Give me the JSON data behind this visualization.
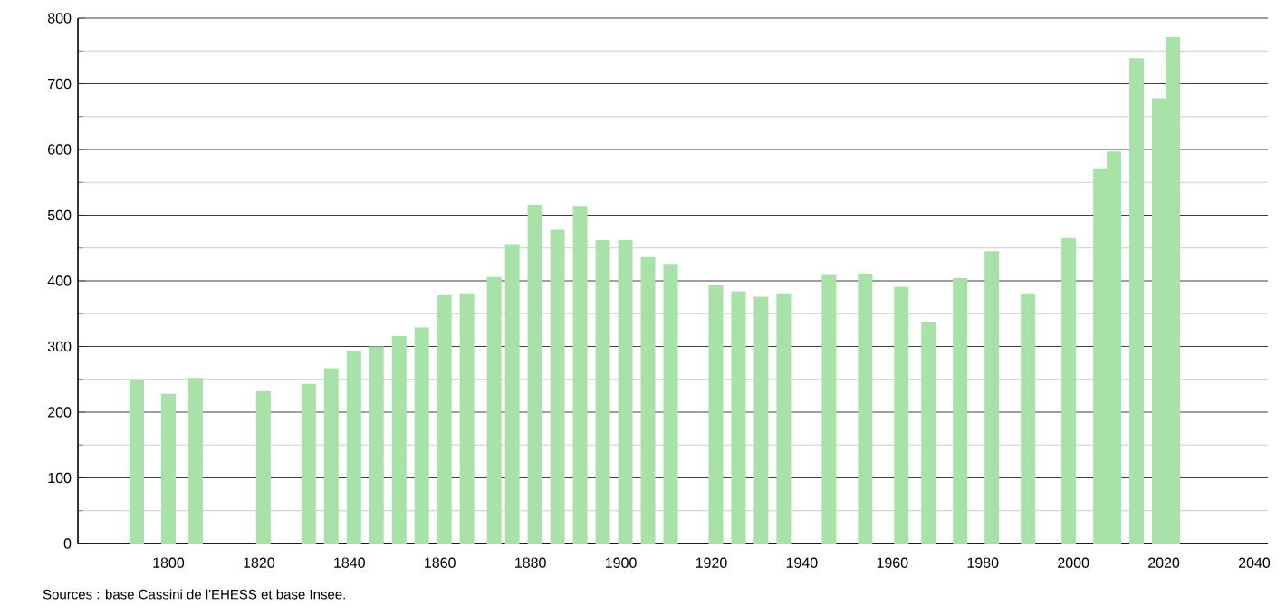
{
  "chart_data": {
    "type": "bar",
    "color": "#a8e2a8",
    "x": [
      1793,
      1800,
      1806,
      1821,
      1831,
      1836,
      1841,
      1846,
      1851,
      1856,
      1861,
      1866,
      1872,
      1876,
      1881,
      1886,
      1891,
      1896,
      1901,
      1906,
      1911,
      1921,
      1926,
      1931,
      1936,
      1946,
      1954,
      1962,
      1968,
      1975,
      1982,
      1990,
      1999,
      2006,
      2009,
      2014,
      2019,
      2022
    ],
    "values": [
      249,
      228,
      252,
      232,
      243,
      267,
      293,
      300,
      316,
      329,
      378,
      381,
      406,
      456,
      516,
      478,
      514,
      462,
      462,
      436,
      426,
      393,
      384,
      376,
      381,
      409,
      411,
      391,
      337,
      404,
      445,
      381,
      465,
      570,
      597,
      739,
      678,
      771
    ],
    "xlim": [
      1780,
      2043
    ],
    "ylim": [
      0,
      800
    ],
    "xticks": [
      1800,
      1820,
      1840,
      1860,
      1880,
      1900,
      1920,
      1940,
      1960,
      1980,
      2000,
      2020,
      2040
    ],
    "yticks": [
      0,
      100,
      200,
      300,
      400,
      500,
      600,
      700,
      800
    ],
    "grid": "y",
    "annotations": [
      "Sources : base Cassini de l'EHESS et base Insee."
    ]
  }
}
